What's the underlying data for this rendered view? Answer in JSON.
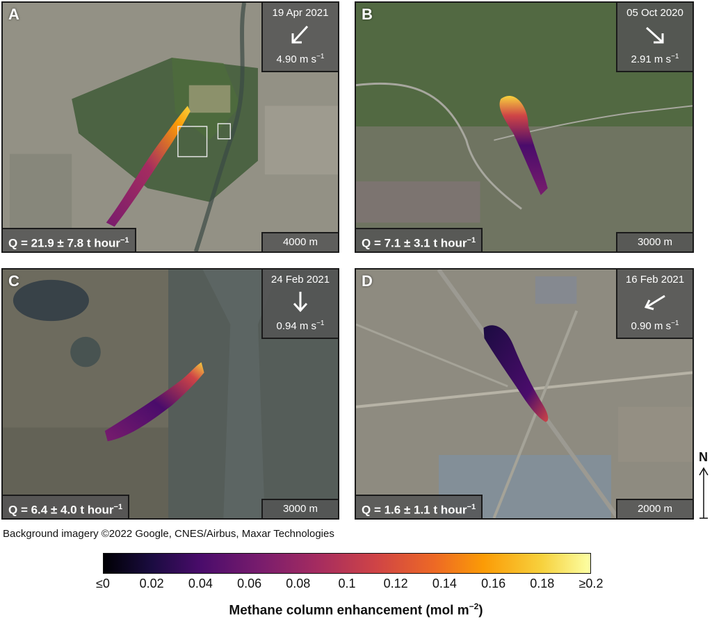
{
  "panels": [
    {
      "letter": "A",
      "date": "19 Apr 2021",
      "speed": "4.90 m s",
      "speed_unit_exp": "−1",
      "q": "Q = 21.9 ± 7.8 t hour",
      "q_exp": "−1",
      "scale": "4000 m",
      "wind_dir": "sw"
    },
    {
      "letter": "B",
      "date": "05 Oct 2020",
      "speed": "2.91 m s",
      "speed_unit_exp": "−1",
      "q": "Q = 7.1 ± 3.1 t hour",
      "q_exp": "−1",
      "scale": "3000 m",
      "wind_dir": "se"
    },
    {
      "letter": "C",
      "date": "24 Feb 2021",
      "speed": "0.94 m s",
      "speed_unit_exp": "−1",
      "q": "Q = 6.4 ± 4.0 t hour",
      "q_exp": "−1",
      "scale": "3000 m",
      "wind_dir": "s"
    },
    {
      "letter": "D",
      "date": "16 Feb 2021",
      "speed": "0.90 m s",
      "speed_unit_exp": "−1",
      "q": "Q = 1.6 ± 1.1 t hour",
      "q_exp": "−1",
      "scale": "2000 m",
      "wind_dir": "sw"
    }
  ],
  "north_label": "N",
  "credit": "Background imagery ©2022 Google, CNES/Airbus, Maxar Technologies",
  "colorbar": {
    "ticks": [
      "≤0",
      "0.02",
      "0.04",
      "0.06",
      "0.08",
      "0.1",
      "0.12",
      "0.14",
      "0.16",
      "0.18",
      "≥0.2"
    ],
    "title": "Methane column enhancement (mol m",
    "title_exp": "−2",
    "title_end": ")",
    "colormap": [
      "#000004",
      "#4a0c6b",
      "#a52c60",
      "#ed6925",
      "#fcffa4"
    ]
  }
}
